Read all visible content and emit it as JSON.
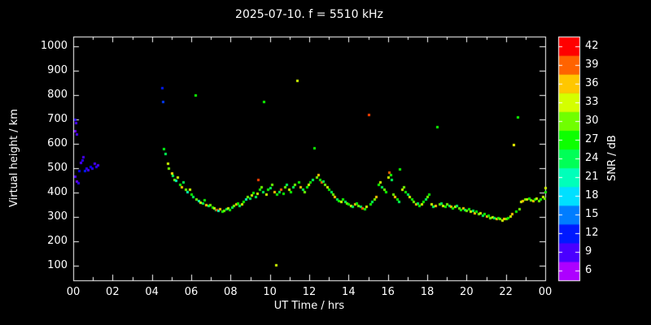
{
  "colors": {
    "background": "#000000",
    "text": "#ffffff",
    "frame": "#ffffff"
  },
  "chart_data": {
    "type": "scatter",
    "title": "2025-07-10. f = 5510 kHz",
    "xlabel": "UT Time / hrs",
    "ylabel": "Virtual height / km",
    "colorbar_label": "SNR / dB",
    "x_ticks": [
      "00",
      "02",
      "04",
      "06",
      "08",
      "10",
      "12",
      "14",
      "16",
      "18",
      "20",
      "22",
      "00"
    ],
    "x_tick_hours": [
      0,
      2,
      4,
      6,
      8,
      10,
      12,
      14,
      16,
      18,
      20,
      22,
      24
    ],
    "y_ticks": [
      "100",
      "200",
      "300",
      "400",
      "500",
      "600",
      "700",
      "800",
      "900",
      "1000"
    ],
    "y_tick_values": [
      100,
      200,
      300,
      400,
      500,
      600,
      700,
      800,
      900,
      1000
    ],
    "colorbar_ticks": [
      "6",
      "9",
      "12",
      "15",
      "18",
      "21",
      "24",
      "27",
      "30",
      "33",
      "36",
      "39",
      "42"
    ],
    "colorbar_tick_values": [
      6,
      9,
      12,
      15,
      18,
      21,
      24,
      27,
      30,
      33,
      36,
      39,
      42
    ],
    "x_range": [
      0,
      24
    ],
    "y_range": [
      40,
      1040
    ],
    "snr_range": [
      4.5,
      43.5
    ],
    "grid": false,
    "points_format": [
      "ut_hour",
      "virtual_height_km",
      "snr_db"
    ],
    "points": [
      [
        0.08,
        700,
        10
      ],
      [
        0.12,
        688,
        9
      ],
      [
        0.1,
        652,
        8
      ],
      [
        0.16,
        640,
        9
      ],
      [
        0.1,
        468,
        9
      ],
      [
        0.18,
        446,
        8
      ],
      [
        0.26,
        440,
        10
      ],
      [
        0.3,
        490,
        11
      ],
      [
        0.36,
        522,
        9
      ],
      [
        0.46,
        532,
        10
      ],
      [
        0.5,
        546,
        9
      ],
      [
        0.56,
        490,
        12
      ],
      [
        0.66,
        500,
        10
      ],
      [
        0.76,
        494,
        9
      ],
      [
        0.86,
        506,
        11
      ],
      [
        0.96,
        500,
        10
      ],
      [
        1.06,
        520,
        9
      ],
      [
        1.16,
        506,
        10
      ],
      [
        1.26,
        512,
        9
      ],
      [
        4.5,
        830,
        12
      ],
      [
        4.55,
        775,
        13
      ],
      [
        4.6,
        580,
        26
      ],
      [
        4.66,
        560,
        24
      ],
      [
        4.8,
        520,
        33
      ],
      [
        4.86,
        500,
        30
      ],
      [
        5.0,
        480,
        35
      ],
      [
        5.06,
        470,
        24
      ],
      [
        5.12,
        455,
        30
      ],
      [
        5.2,
        450,
        21
      ],
      [
        5.3,
        465,
        33
      ],
      [
        5.4,
        432,
        27
      ],
      [
        5.5,
        422,
        36
      ],
      [
        5.6,
        445,
        24
      ],
      [
        5.7,
        412,
        30
      ],
      [
        5.8,
        402,
        21
      ],
      [
        5.9,
        415,
        33
      ],
      [
        6.0,
        392,
        27
      ],
      [
        6.1,
        382,
        24
      ],
      [
        6.2,
        800,
        27
      ],
      [
        6.26,
        372,
        30
      ],
      [
        6.36,
        366,
        21
      ],
      [
        6.46,
        360,
        33
      ],
      [
        6.56,
        356,
        24
      ],
      [
        6.66,
        370,
        27
      ],
      [
        6.76,
        350,
        36
      ],
      [
        6.86,
        346,
        24
      ],
      [
        6.96,
        350,
        30
      ],
      [
        7.06,
        340,
        27
      ],
      [
        7.16,
        336,
        33
      ],
      [
        7.26,
        330,
        24
      ],
      [
        7.3,
        330,
        40
      ],
      [
        7.36,
        328,
        21
      ],
      [
        7.46,
        332,
        36
      ],
      [
        7.56,
        322,
        27
      ],
      [
        7.66,
        326,
        30
      ],
      [
        7.76,
        332,
        24
      ],
      [
        7.86,
        336,
        33
      ],
      [
        7.96,
        330,
        27
      ],
      [
        8.06,
        340,
        24
      ],
      [
        8.16,
        347,
        30
      ],
      [
        8.26,
        352,
        36
      ],
      [
        8.36,
        357,
        27
      ],
      [
        8.46,
        348,
        24
      ],
      [
        8.56,
        352,
        33
      ],
      [
        8.66,
        362,
        27
      ],
      [
        8.76,
        372,
        21
      ],
      [
        8.86,
        382,
        30
      ],
      [
        8.96,
        376,
        24
      ],
      [
        9.06,
        390,
        33
      ],
      [
        9.16,
        400,
        27
      ],
      [
        9.26,
        382,
        24
      ],
      [
        9.36,
        396,
        33
      ],
      [
        9.4,
        455,
        40
      ],
      [
        9.46,
        412,
        27
      ],
      [
        9.56,
        422,
        30
      ],
      [
        9.66,
        402,
        24
      ],
      [
        9.7,
        775,
        27
      ],
      [
        9.8,
        392,
        33
      ],
      [
        9.9,
        412,
        27
      ],
      [
        10.0,
        420,
        24
      ],
      [
        10.1,
        432,
        30
      ],
      [
        10.2,
        402,
        36
      ],
      [
        10.3,
        105,
        33
      ],
      [
        10.36,
        392,
        27
      ],
      [
        10.46,
        402,
        24
      ],
      [
        10.56,
        412,
        39
      ],
      [
        10.66,
        396,
        27
      ],
      [
        10.76,
        422,
        30
      ],
      [
        10.86,
        432,
        24
      ],
      [
        10.96,
        412,
        33
      ],
      [
        11.06,
        402,
        27
      ],
      [
        11.16,
        422,
        24
      ],
      [
        11.26,
        432,
        30
      ],
      [
        11.36,
        860,
        33
      ],
      [
        11.46,
        442,
        27
      ],
      [
        11.56,
        422,
        36
      ],
      [
        11.66,
        412,
        24
      ],
      [
        11.76,
        402,
        30
      ],
      [
        11.86,
        422,
        27
      ],
      [
        11.96,
        432,
        33
      ],
      [
        12.06,
        442,
        27
      ],
      [
        12.16,
        452,
        24
      ],
      [
        12.26,
        585,
        27
      ],
      [
        12.36,
        462,
        30
      ],
      [
        12.46,
        472,
        36
      ],
      [
        12.52,
        455,
        27
      ],
      [
        12.6,
        442,
        39
      ],
      [
        12.7,
        448,
        24
      ],
      [
        12.8,
        432,
        30
      ],
      [
        12.9,
        422,
        33
      ],
      [
        13.0,
        412,
        27
      ],
      [
        13.1,
        402,
        24
      ],
      [
        13.2,
        392,
        30
      ],
      [
        13.3,
        382,
        36
      ],
      [
        13.4,
        372,
        24
      ],
      [
        13.5,
        366,
        27
      ],
      [
        13.6,
        362,
        33
      ],
      [
        13.7,
        372,
        27
      ],
      [
        13.8,
        362,
        24
      ],
      [
        13.9,
        356,
        30
      ],
      [
        14.0,
        352,
        27
      ],
      [
        14.1,
        346,
        33
      ],
      [
        14.2,
        342,
        24
      ],
      [
        14.3,
        352,
        36
      ],
      [
        14.4,
        356,
        27
      ],
      [
        14.5,
        346,
        30
      ],
      [
        14.6,
        342,
        24
      ],
      [
        14.7,
        336,
        39
      ],
      [
        14.8,
        332,
        27
      ],
      [
        14.9,
        342,
        33
      ],
      [
        15.0,
        720,
        40
      ],
      [
        15.1,
        352,
        27
      ],
      [
        15.2,
        362,
        24
      ],
      [
        15.3,
        372,
        30
      ],
      [
        15.4,
        382,
        36
      ],
      [
        15.5,
        432,
        27
      ],
      [
        15.6,
        442,
        33
      ],
      [
        15.7,
        422,
        24
      ],
      [
        15.8,
        412,
        30
      ],
      [
        15.9,
        402,
        27
      ],
      [
        16.0,
        462,
        33
      ],
      [
        16.06,
        482,
        39
      ],
      [
        16.12,
        472,
        27
      ],
      [
        16.18,
        452,
        24
      ],
      [
        16.26,
        392,
        30
      ],
      [
        16.36,
        382,
        36
      ],
      [
        16.46,
        372,
        27
      ],
      [
        16.56,
        362,
        24
      ],
      [
        16.6,
        498,
        27
      ],
      [
        16.7,
        412,
        33
      ],
      [
        16.8,
        422,
        30
      ],
      [
        16.9,
        402,
        27
      ],
      [
        17.0,
        392,
        24
      ],
      [
        17.1,
        382,
        33
      ],
      [
        17.2,
        372,
        27
      ],
      [
        17.3,
        362,
        30
      ],
      [
        17.4,
        352,
        36
      ],
      [
        17.5,
        356,
        24
      ],
      [
        17.6,
        346,
        27
      ],
      [
        17.7,
        352,
        33
      ],
      [
        17.8,
        362,
        27
      ],
      [
        17.9,
        372,
        24
      ],
      [
        18.0,
        382,
        30
      ],
      [
        18.1,
        392,
        27
      ],
      [
        18.2,
        352,
        33
      ],
      [
        18.3,
        342,
        24
      ],
      [
        18.4,
        346,
        36
      ],
      [
        18.5,
        670,
        27
      ],
      [
        18.6,
        352,
        30
      ],
      [
        18.7,
        356,
        24
      ],
      [
        18.8,
        346,
        33
      ],
      [
        18.9,
        342,
        27
      ],
      [
        19.0,
        352,
        30
      ],
      [
        19.1,
        346,
        24
      ],
      [
        19.2,
        342,
        36
      ],
      [
        19.3,
        336,
        27
      ],
      [
        19.4,
        342,
        33
      ],
      [
        19.5,
        346,
        24
      ],
      [
        19.6,
        336,
        30
      ],
      [
        19.7,
        330,
        27
      ],
      [
        19.8,
        336,
        36
      ],
      [
        19.9,
        330,
        24
      ],
      [
        20.0,
        326,
        30
      ],
      [
        20.1,
        332,
        27
      ],
      [
        20.2,
        322,
        33
      ],
      [
        20.3,
        326,
        24
      ],
      [
        20.4,
        316,
        36
      ],
      [
        20.5,
        322,
        27
      ],
      [
        20.6,
        312,
        30
      ],
      [
        20.7,
        316,
        33
      ],
      [
        20.8,
        306,
        24
      ],
      [
        20.9,
        312,
        27
      ],
      [
        21.0,
        302,
        36
      ],
      [
        21.1,
        306,
        27
      ],
      [
        21.2,
        296,
        30
      ],
      [
        21.3,
        300,
        33
      ],
      [
        21.4,
        296,
        24
      ],
      [
        21.5,
        292,
        36
      ],
      [
        21.6,
        296,
        27
      ],
      [
        21.7,
        292,
        30
      ],
      [
        21.8,
        288,
        33
      ],
      [
        21.9,
        292,
        36
      ],
      [
        22.0,
        292,
        30
      ],
      [
        22.1,
        296,
        27
      ],
      [
        22.2,
        302,
        33
      ],
      [
        22.3,
        312,
        36
      ],
      [
        22.4,
        595,
        34
      ],
      [
        22.5,
        322,
        27
      ],
      [
        22.6,
        710,
        27
      ],
      [
        22.66,
        332,
        30
      ],
      [
        22.76,
        362,
        33
      ],
      [
        22.86,
        366,
        36
      ],
      [
        22.96,
        372,
        30
      ],
      [
        23.06,
        372,
        33
      ],
      [
        23.16,
        376,
        27
      ],
      [
        23.26,
        370,
        30
      ],
      [
        23.36,
        366,
        36
      ],
      [
        23.46,
        372,
        27
      ],
      [
        23.56,
        376,
        33
      ],
      [
        23.66,
        366,
        30
      ],
      [
        23.76,
        372,
        27
      ],
      [
        23.86,
        382,
        33
      ],
      [
        23.96,
        376,
        30
      ],
      [
        23.98,
        402,
        27
      ],
      [
        24.0,
        420,
        33
      ]
    ]
  }
}
